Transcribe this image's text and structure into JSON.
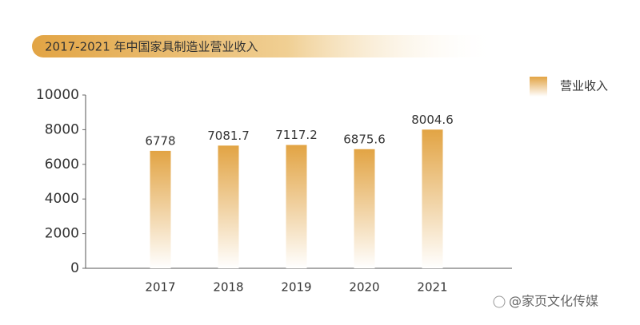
{
  "chart_data": {
    "type": "bar",
    "title": "2017-2021 年中国家具制造业营业收入",
    "categories": [
      "2017",
      "2018",
      "2019",
      "2020",
      "2021"
    ],
    "series": [
      {
        "name": "营业收入",
        "color": "#e2a444",
        "values": [
          6778,
          7081.7,
          7117.2,
          6875.6,
          8004.6
        ]
      }
    ],
    "ylim": [
      0,
      10000
    ],
    "yticks": [
      0,
      2000,
      4000,
      6000,
      8000,
      10000
    ],
    "watermark": "@家页文化传媒"
  }
}
